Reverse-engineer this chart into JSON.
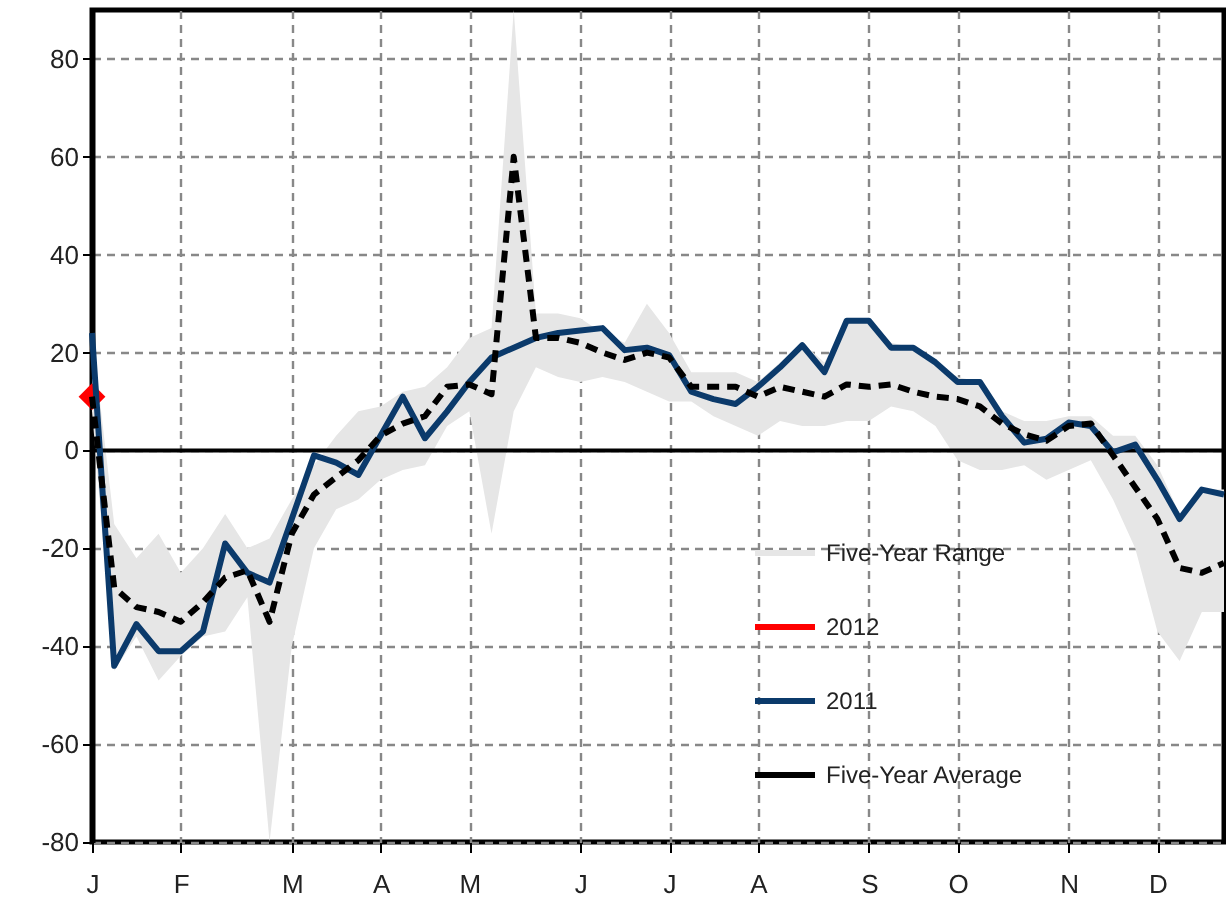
{
  "chart_data": {
    "type": "line",
    "categories": [
      "J",
      null,
      null,
      null,
      "F",
      null,
      null,
      null,
      null,
      "M",
      null,
      null,
      null,
      "A",
      null,
      null,
      null,
      "M",
      null,
      null,
      null,
      null,
      "J",
      null,
      null,
      null,
      "J",
      null,
      null,
      null,
      "A",
      null,
      null,
      null,
      null,
      "S",
      null,
      null,
      null,
      "O",
      null,
      null,
      null,
      null,
      "N",
      null,
      null,
      null,
      "D",
      null,
      null,
      null
    ],
    "ylim": [
      -80,
      90
    ],
    "yticks": [
      -80,
      -60,
      -40,
      -20,
      0,
      20,
      40,
      60,
      80
    ],
    "grid": true,
    "legend": "bottom right",
    "annotations": [
      "Five-Year Range"
    ],
    "ref_lines": [
      {
        "axis": "y",
        "value": 0,
        "color": "#000000"
      }
    ],
    "series": [
      {
        "name": "2012",
        "color": "#ff0000",
        "marker": "diamond",
        "values": [
          11,
          null,
          null,
          null,
          null,
          null,
          null,
          null,
          null,
          null,
          null,
          null,
          null,
          null,
          null,
          null,
          null,
          null,
          null,
          null,
          null,
          null,
          null,
          null,
          null,
          null,
          null,
          null,
          null,
          null,
          null,
          null,
          null,
          null,
          null,
          null,
          null,
          null,
          null,
          null,
          null,
          null,
          null,
          null,
          null,
          null,
          null,
          null,
          null,
          null,
          null,
          null
        ]
      },
      {
        "name": "2011",
        "color": "#0b3a6b",
        "line_style": "solid",
        "values": [
          24,
          -44,
          -35.5,
          -41,
          -41,
          -37,
          -19,
          -25,
          -27,
          -14,
          -1,
          -2.5,
          -5,
          3,
          11,
          2.5,
          8,
          14,
          19,
          21,
          23,
          24,
          24.5,
          25,
          20.5,
          21,
          19.5,
          12,
          10.5,
          9.5,
          13,
          17,
          21.5,
          16,
          26.5,
          26.5,
          21,
          21,
          18,
          14,
          14,
          7,
          1.6,
          2.4,
          5.7,
          5,
          -0.4,
          1.2,
          -6,
          -14,
          -8,
          -9
        ]
      },
      {
        "name": "Five-Year Average",
        "color": "#000000",
        "line_style": "dashed",
        "values": [
          11,
          -28,
          -32,
          -33,
          -35,
          -31,
          -26,
          -24.5,
          -35,
          -17,
          -9,
          -5.5,
          -2,
          3,
          5.5,
          7,
          13,
          13.5,
          11.5,
          60,
          23,
          23,
          22,
          20,
          18.5,
          20,
          19,
          13,
          13,
          13,
          11,
          13,
          12,
          11,
          13.5,
          13,
          13.5,
          12,
          11,
          10.5,
          9,
          5.5,
          3.3,
          2,
          5,
          5.5,
          -1,
          -7.5,
          -14,
          -24,
          -25,
          -23
        ],
        "lower": [
          8,
          -45,
          -38,
          -47,
          -42,
          -38,
          -37,
          -30,
          -80,
          -40,
          -20,
          -12,
          -10,
          -6,
          -4,
          -3,
          5,
          8,
          -17,
          8,
          17,
          15,
          14,
          15,
          14,
          12,
          10,
          10,
          7,
          5,
          3,
          6,
          5,
          5,
          6,
          6,
          9,
          8,
          5,
          -2,
          -4,
          -4,
          -3,
          -6,
          -4,
          -2,
          -10,
          -20,
          -37,
          -43,
          -33,
          -33
        ],
        "upper": [
          24,
          -15,
          -22,
          -17,
          -25,
          -20,
          -13,
          -20,
          -18,
          -10,
          -3,
          3,
          8,
          9,
          12,
          13,
          17,
          23,
          25,
          90,
          28,
          28,
          27,
          24,
          22,
          30,
          24,
          16,
          16,
          16,
          14,
          18,
          22,
          18,
          27,
          27,
          22,
          21,
          18,
          15,
          14,
          8,
          6,
          6,
          7,
          7,
          3,
          3,
          -3,
          -13,
          -8,
          -8
        ]
      }
    ]
  }
}
